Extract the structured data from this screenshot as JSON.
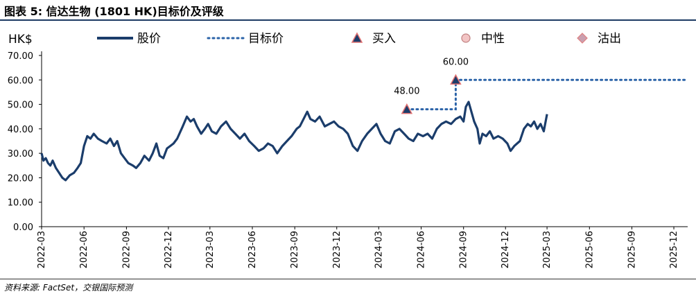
{
  "title": "图表 5: 信达生物 (1801 HK)目标价及评级",
  "source": "资料来源: FactSet，交银国际预测",
  "chart_data": {
    "type": "line",
    "unit_label": "HK$",
    "ylim": [
      0,
      70
    ],
    "yticks": [
      "0.00",
      "10.00",
      "20.00",
      "30.00",
      "40.00",
      "50.00",
      "60.00",
      "70.00"
    ],
    "xticks": [
      "2022-03",
      "2022-06",
      "2022-09",
      "2022-12",
      "2023-03",
      "2023-06",
      "2023-09",
      "2023-12",
      "2024-03",
      "2024-06",
      "2024-09",
      "2024-12",
      "2025-03",
      "2025-06",
      "2025-09",
      "2025-12"
    ],
    "legend": [
      {
        "key": "price",
        "label": "股价",
        "style": "solid-line",
        "color": "#1b3d6b"
      },
      {
        "key": "target",
        "label": "目标价",
        "style": "dotted-line",
        "color": "#2b63a8"
      },
      {
        "key": "buy",
        "label": "买入",
        "style": "triangle-marker",
        "color": "#1b3d6b"
      },
      {
        "key": "neutral",
        "label": "中性",
        "style": "circle-marker",
        "color": "#f2c4c4"
      },
      {
        "key": "sell",
        "label": "沽出",
        "style": "diamond-marker",
        "color": "#c9a0b0"
      }
    ],
    "series": [
      {
        "name": "股价",
        "color": "#1b3d6b",
        "points": [
          [
            "2022-03-01",
            30
          ],
          [
            "2022-03-05",
            27
          ],
          [
            "2022-03-10",
            28
          ],
          [
            "2022-03-15",
            26
          ],
          [
            "2022-03-20",
            25
          ],
          [
            "2022-03-25",
            27
          ],
          [
            "2022-04-01",
            24
          ],
          [
            "2022-04-08",
            22
          ],
          [
            "2022-04-15",
            20
          ],
          [
            "2022-04-22",
            19
          ],
          [
            "2022-05-01",
            21
          ],
          [
            "2022-05-10",
            22
          ],
          [
            "2022-05-18",
            24
          ],
          [
            "2022-05-25",
            26
          ],
          [
            "2022-06-01",
            33
          ],
          [
            "2022-06-08",
            37
          ],
          [
            "2022-06-15",
            36
          ],
          [
            "2022-06-22",
            38
          ],
          [
            "2022-07-01",
            36
          ],
          [
            "2022-07-10",
            35
          ],
          [
            "2022-07-20",
            34
          ],
          [
            "2022-07-28",
            36
          ],
          [
            "2022-08-05",
            33
          ],
          [
            "2022-08-12",
            35
          ],
          [
            "2022-08-20",
            30
          ],
          [
            "2022-08-28",
            28
          ],
          [
            "2022-09-05",
            26
          ],
          [
            "2022-09-15",
            25
          ],
          [
            "2022-09-22",
            24
          ],
          [
            "2022-10-01",
            26
          ],
          [
            "2022-10-10",
            29
          ],
          [
            "2022-10-20",
            27
          ],
          [
            "2022-10-28",
            30
          ],
          [
            "2022-11-05",
            34
          ],
          [
            "2022-11-12",
            29
          ],
          [
            "2022-11-20",
            28
          ],
          [
            "2022-11-28",
            32
          ],
          [
            "2022-12-05",
            33
          ],
          [
            "2022-12-12",
            34
          ],
          [
            "2022-12-20",
            36
          ],
          [
            "2023-01-01",
            41
          ],
          [
            "2023-01-10",
            45
          ],
          [
            "2023-01-18",
            43
          ],
          [
            "2023-01-25",
            44
          ],
          [
            "2023-02-01",
            41
          ],
          [
            "2023-02-10",
            38
          ],
          [
            "2023-02-18",
            40
          ],
          [
            "2023-02-25",
            42
          ],
          [
            "2023-03-05",
            39
          ],
          [
            "2023-03-15",
            38
          ],
          [
            "2023-03-25",
            41
          ],
          [
            "2023-04-05",
            43
          ],
          [
            "2023-04-15",
            40
          ],
          [
            "2023-04-25",
            38
          ],
          [
            "2023-05-05",
            36
          ],
          [
            "2023-05-15",
            38
          ],
          [
            "2023-05-25",
            35
          ],
          [
            "2023-06-05",
            33
          ],
          [
            "2023-06-15",
            31
          ],
          [
            "2023-06-25",
            32
          ],
          [
            "2023-07-05",
            34
          ],
          [
            "2023-07-15",
            33
          ],
          [
            "2023-07-25",
            30
          ],
          [
            "2023-08-05",
            33
          ],
          [
            "2023-08-15",
            35
          ],
          [
            "2023-08-25",
            37
          ],
          [
            "2023-09-05",
            40
          ],
          [
            "2023-09-12",
            41
          ],
          [
            "2023-09-20",
            44
          ],
          [
            "2023-09-28",
            47
          ],
          [
            "2023-10-05",
            44
          ],
          [
            "2023-10-15",
            43
          ],
          [
            "2023-10-25",
            45
          ],
          [
            "2023-11-05",
            41
          ],
          [
            "2023-11-15",
            42
          ],
          [
            "2023-11-25",
            43
          ],
          [
            "2023-12-05",
            41
          ],
          [
            "2023-12-15",
            40
          ],
          [
            "2023-12-25",
            38
          ],
          [
            "2024-01-05",
            33
          ],
          [
            "2024-01-15",
            31
          ],
          [
            "2024-01-25",
            35
          ],
          [
            "2024-02-05",
            38
          ],
          [
            "2024-02-15",
            40
          ],
          [
            "2024-02-25",
            42
          ],
          [
            "2024-03-05",
            38
          ],
          [
            "2024-03-15",
            35
          ],
          [
            "2024-03-25",
            34
          ],
          [
            "2024-04-05",
            39
          ],
          [
            "2024-04-15",
            40
          ],
          [
            "2024-04-25",
            38
          ],
          [
            "2024-05-05",
            36
          ],
          [
            "2024-05-15",
            35
          ],
          [
            "2024-05-25",
            38
          ],
          [
            "2024-06-05",
            37
          ],
          [
            "2024-06-15",
            38
          ],
          [
            "2024-06-25",
            36
          ],
          [
            "2024-07-05",
            40
          ],
          [
            "2024-07-15",
            42
          ],
          [
            "2024-07-25",
            43
          ],
          [
            "2024-08-05",
            42
          ],
          [
            "2024-08-15",
            44
          ],
          [
            "2024-08-25",
            45
          ],
          [
            "2024-09-01",
            43
          ],
          [
            "2024-09-06",
            49
          ],
          [
            "2024-09-12",
            51
          ],
          [
            "2024-09-18",
            47
          ],
          [
            "2024-09-24",
            43
          ],
          [
            "2024-10-01",
            40
          ],
          [
            "2024-10-06",
            34
          ],
          [
            "2024-10-12",
            38
          ],
          [
            "2024-10-20",
            37
          ],
          [
            "2024-10-28",
            39
          ],
          [
            "2024-11-05",
            36
          ],
          [
            "2024-11-15",
            37
          ],
          [
            "2024-11-25",
            36
          ],
          [
            "2024-12-05",
            34
          ],
          [
            "2024-12-12",
            31
          ],
          [
            "2024-12-20",
            33
          ],
          [
            "2025-01-01",
            35
          ],
          [
            "2025-01-10",
            40
          ],
          [
            "2025-01-18",
            42
          ],
          [
            "2025-01-25",
            41
          ],
          [
            "2025-02-01",
            43
          ],
          [
            "2025-02-08",
            40
          ],
          [
            "2025-02-15",
            42
          ],
          [
            "2025-02-22",
            39
          ],
          [
            "2025-03-01",
            46
          ]
        ]
      },
      {
        "name": "目标价",
        "color": "#2b63a8",
        "points": [
          [
            "2024-05-01",
            48
          ],
          [
            "2024-08-15",
            48
          ],
          [
            "2024-08-15",
            60
          ],
          [
            "2025-12-31",
            60
          ]
        ]
      }
    ],
    "ratings": [
      {
        "date": "2024-05-01",
        "value": 48,
        "rating": "买入",
        "label": "48.00"
      },
      {
        "date": "2024-08-15",
        "value": 60,
        "rating": "买入",
        "label": "60.00"
      }
    ]
  }
}
